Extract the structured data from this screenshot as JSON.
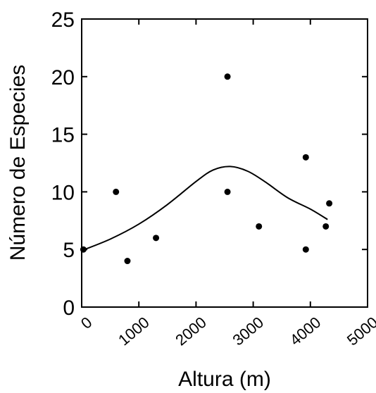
{
  "chart_data": {
    "type": "scatter",
    "title": "",
    "xlabel": "Altura (m)",
    "ylabel": "Número de Especies",
    "xlim": [
      0,
      5000
    ],
    "ylim": [
      0,
      25
    ],
    "x_ticks": [
      0,
      1000,
      2000,
      3000,
      4000,
      5000
    ],
    "y_ticks": [
      0,
      5,
      10,
      15,
      20,
      25
    ],
    "x_tick_labels": [
      "0",
      "1000",
      "2000",
      "3000",
      "4000",
      "5000"
    ],
    "y_tick_labels": [
      "0",
      "5",
      "10",
      "15",
      "20",
      "25"
    ],
    "grid": false,
    "legend": "none",
    "points": [
      {
        "x": 30,
        "y": 5
      },
      {
        "x": 600,
        "y": 10
      },
      {
        "x": 800,
        "y": 4
      },
      {
        "x": 1300,
        "y": 6
      },
      {
        "x": 2550,
        "y": 20
      },
      {
        "x": 2550,
        "y": 10
      },
      {
        "x": 3100,
        "y": 7
      },
      {
        "x": 3920,
        "y": 13
      },
      {
        "x": 3920,
        "y": 5
      },
      {
        "x": 4270,
        "y": 7
      },
      {
        "x": 4330,
        "y": 9
      }
    ],
    "fit_curve": [
      {
        "x": 0,
        "y": 4.9
      },
      {
        "x": 500,
        "y": 5.9
      },
      {
        "x": 1000,
        "y": 7.2
      },
      {
        "x": 1500,
        "y": 8.9
      },
      {
        "x": 2000,
        "y": 10.9
      },
      {
        "x": 2300,
        "y": 11.9
      },
      {
        "x": 2600,
        "y": 12.2
      },
      {
        "x": 2900,
        "y": 11.8
      },
      {
        "x": 3200,
        "y": 10.9
      },
      {
        "x": 3600,
        "y": 9.5
      },
      {
        "x": 4000,
        "y": 8.5
      },
      {
        "x": 4300,
        "y": 7.6
      }
    ],
    "colors": {
      "marker": "#000000",
      "line": "#000000",
      "axis": "#000000"
    }
  }
}
